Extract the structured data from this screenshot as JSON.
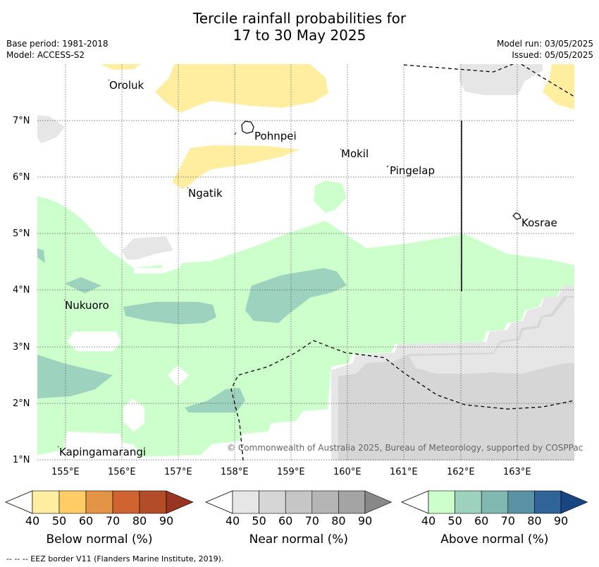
{
  "title": {
    "line1": "Tercile rainfall probabilities for",
    "line2": "17 to 30 May 2025"
  },
  "meta": {
    "base_period": "Base period: 1981-2018",
    "model": "Model: ACCESS-S2",
    "model_run": "Model run: 03/05/2025",
    "issued": "Issued: 05/05/2025"
  },
  "map": {
    "lat_labels": [
      "7°N",
      "6°N",
      "5°N",
      "4°N",
      "3°N",
      "2°N",
      "1°N"
    ],
    "lon_labels": [
      "155°E",
      "156°E",
      "157°E",
      "158°E",
      "159°E",
      "160°E",
      "161°E",
      "162°E",
      "163°E"
    ],
    "places": {
      "oroluk": "Oroluk",
      "pohnpei": "Pohnpei",
      "mokil": "Mokil",
      "pingelap": "Pingelap",
      "ngatik": "Ngatik",
      "kosrae": "Kosrae",
      "nukuoro": "Nukuoro",
      "kapingamarangi": "Kapingamarangi"
    },
    "copyright": "© Commonwealth of Australia 2025, Bureau of Meteorology, supported by COSPPac",
    "colors": {
      "below_40": "#ffeea0",
      "near_40": "#e6e6e6",
      "near_50": "#d6d6d6",
      "above_40": "#ccffcc",
      "above_50": "#9dd3be"
    }
  },
  "colorbars": [
    {
      "title": "Below normal (%)",
      "ticks": [
        "40",
        "50",
        "60",
        "70",
        "80",
        "90"
      ],
      "colors": [
        "#ffeea0",
        "#ffcc66",
        "#e39545",
        "#cf6432",
        "#b34d29",
        "#993322"
      ]
    },
    {
      "title": "Near normal (%)",
      "ticks": [
        "40",
        "50",
        "60",
        "70",
        "80",
        "90"
      ],
      "colors": [
        "#e6e6e6",
        "#d6d6d6",
        "#c6c6c6",
        "#b4b4b4",
        "#a4a4a4",
        "#888888"
      ]
    },
    {
      "title": "Above normal (%)",
      "ticks": [
        "40",
        "50",
        "60",
        "70",
        "80",
        "90"
      ],
      "colors": [
        "#ccffcc",
        "#9dd3be",
        "#80b8b1",
        "#5a92a4",
        "#306498",
        "#184683"
      ]
    }
  ],
  "footnote": "--  --  -- EEZ border V11 (Flanders Marine Institute, 2019)."
}
